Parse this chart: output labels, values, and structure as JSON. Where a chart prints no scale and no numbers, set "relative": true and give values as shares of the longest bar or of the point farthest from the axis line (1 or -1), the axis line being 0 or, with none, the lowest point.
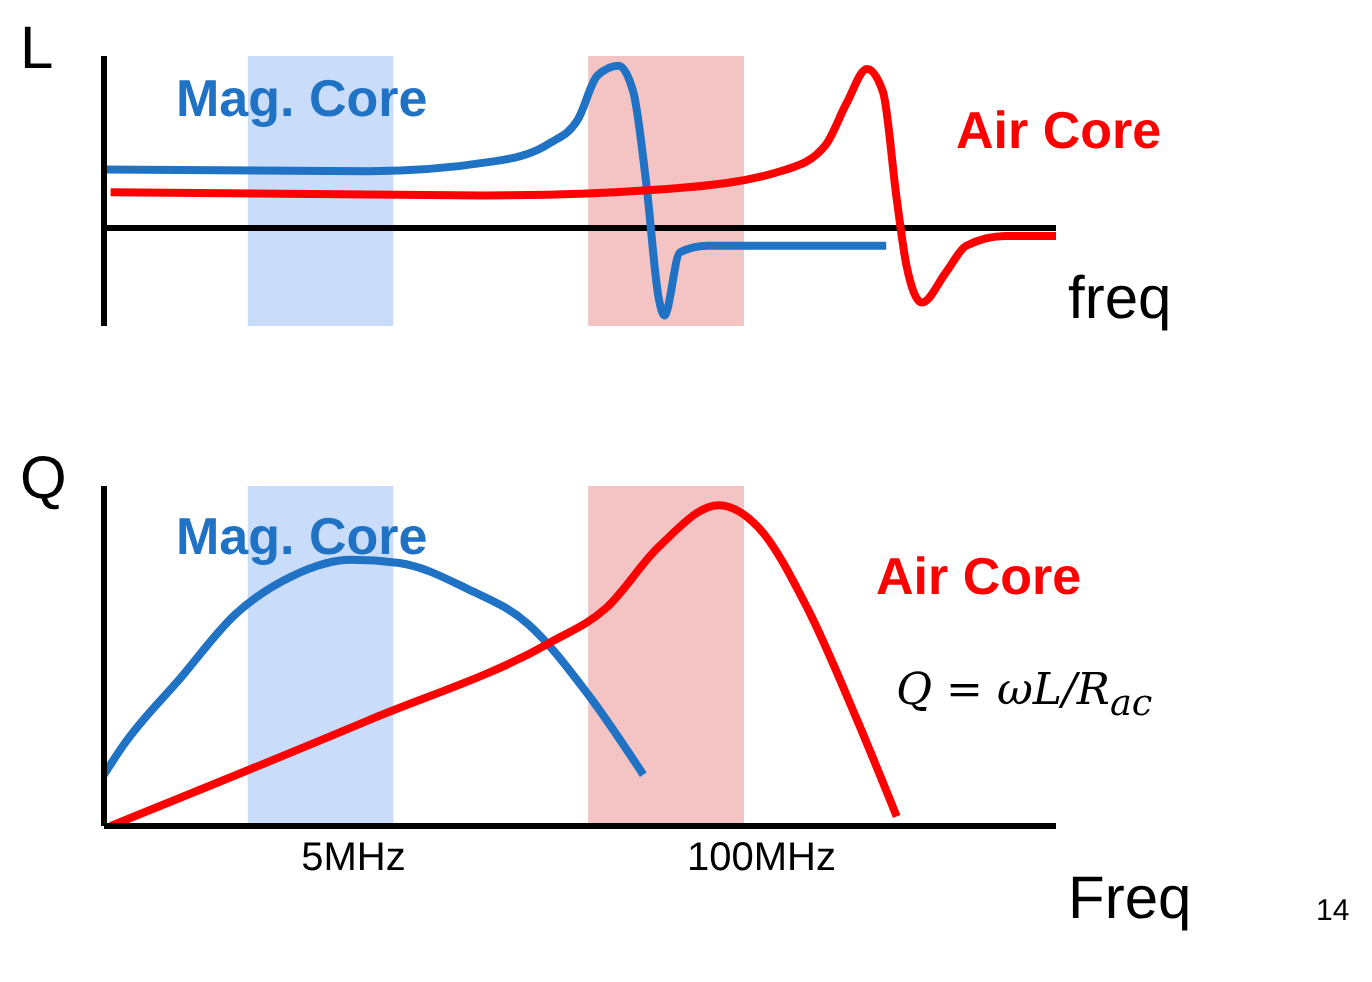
{
  "chart_data": [
    {
      "type": "line",
      "relative": true,
      "ylabel": "L",
      "xlabel": "freq",
      "log": "x",
      "xlim": [
        0.8,
        870
      ],
      "bands": [
        {
          "axis": "x",
          "from": 2.3,
          "to": 6.7,
          "color": "#c9dcfa"
        },
        {
          "axis": "x",
          "from": 28,
          "to": 88,
          "color": "#f4c4c4"
        }
      ],
      "series": [
        {
          "name": "Mag. Core",
          "color": "#1f72c4",
          "x": [
            0.8,
            5.6,
            14,
            21,
            26,
            30,
            35,
            39,
            43,
            47,
            49,
            55,
            67,
            250
          ],
          "values": [
            0.36,
            0.35,
            0.41,
            0.52,
            0.67,
            0.94,
            1,
            0.84,
            0.26,
            -0.43,
            -0.54,
            -0.15,
            -0.11,
            -0.11
          ]
        },
        {
          "name": "Air Core",
          "color": "#ff0000",
          "x": [
            0.84,
            13,
            50,
            120,
            160,
            187,
            217,
            244,
            270,
            290,
            325,
            389,
            450,
            600,
            870
          ],
          "values": [
            0.22,
            0.2,
            0.24,
            0.36,
            0.51,
            0.77,
            0.98,
            0.84,
            0.18,
            -0.23,
            -0.46,
            -0.27,
            -0.11,
            -0.05,
            -0.05
          ]
        }
      ]
    },
    {
      "type": "line",
      "relative": true,
      "ylabel": "Q",
      "xlabel": "Freq",
      "log": "x",
      "xlim": [
        0.8,
        870
      ],
      "xticks": [
        {
          "value": 5,
          "label": "5MHz"
        },
        {
          "value": 100,
          "label": "100MHz"
        }
      ],
      "bands": [
        {
          "axis": "x",
          "from": 2.3,
          "to": 6.7,
          "color": "#c9dcfa"
        },
        {
          "axis": "x",
          "from": 28,
          "to": 88,
          "color": "#f4c4c4"
        }
      ],
      "annotations": [
        "Q = ωL/R$_{ac}$",
        "14"
      ],
      "series": [
        {
          "name": "Mag. Core",
          "color": "#1f72c4",
          "x": [
            0.8,
            0.92,
            1.4,
            2.1,
            3.2,
            4.9,
            7.0,
            11.5,
            18,
            28,
            42
          ],
          "values": [
            0.16,
            0.25,
            0.46,
            0.66,
            0.78,
            0.83,
            0.82,
            0.74,
            0.63,
            0.41,
            0.16
          ]
        },
        {
          "name": "Air Core",
          "color": "#ff0000",
          "x": [
            0.84,
            5.6,
            21,
            32,
            47,
            73,
            98,
            140,
            202,
            270
          ],
          "values": [
            0,
            0.33,
            0.57,
            0.68,
            0.87,
            1,
            0.93,
            0.68,
            0.33,
            0.03
          ]
        }
      ]
    }
  ]
}
